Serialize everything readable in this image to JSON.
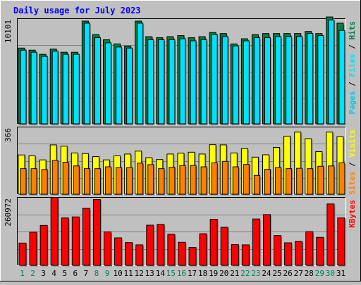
{
  "title": "Daily usage for July 2023",
  "colors": {
    "background": "#c0c0c0",
    "title": "#0000ff",
    "hits": "#008040",
    "files": "#00e0ff",
    "pages": "#00c8e8",
    "visits": "#ffff00",
    "sites": "#ff8000",
    "kbytes": "#ff0000",
    "weekend_label": "#00805c",
    "weekday_label": "#000000"
  },
  "chart_data": [
    {
      "type": "bar",
      "title": "Daily usage for July 2023",
      "categories": [
        "1",
        "2",
        "3",
        "4",
        "5",
        "6",
        "7",
        "8",
        "9",
        "10",
        "11",
        "12",
        "13",
        "14",
        "15",
        "16",
        "17",
        "18",
        "19",
        "20",
        "21",
        "22",
        "23",
        "24",
        "25",
        "26",
        "27",
        "28",
        "29",
        "30",
        "31"
      ],
      "weekend_days": [
        "1",
        "2",
        "8",
        "9",
        "15",
        "16",
        "22",
        "23",
        "29",
        "30"
      ],
      "ylim": [
        0,
        10101
      ],
      "y_tick_label": "10101",
      "right_label": [
        "Pages",
        "Files",
        "Hits"
      ],
      "series": [
        {
          "name": "Hits",
          "values": [
            7300,
            7100,
            6700,
            7200,
            6900,
            6900,
            9900,
            8600,
            8100,
            7700,
            7500,
            9900,
            8400,
            8300,
            8400,
            8500,
            8300,
            8400,
            8800,
            8700,
            7700,
            8200,
            8600,
            8700,
            8700,
            8700,
            8700,
            8900,
            8700,
            10300,
            9700
          ]
        },
        {
          "name": "Files",
          "values": [
            7100,
            6900,
            6500,
            7000,
            6700,
            6700,
            9700,
            8300,
            7800,
            7400,
            7300,
            9700,
            8100,
            8100,
            8100,
            8200,
            8000,
            8100,
            8600,
            8400,
            7500,
            8000,
            8300,
            8300,
            8400,
            8400,
            8400,
            8700,
            8500,
            10000,
            9000
          ]
        }
      ]
    },
    {
      "type": "bar",
      "ylim": [
        0,
        366
      ],
      "y_tick_label": "366",
      "right_label": [
        "Sites",
        "Visits"
      ],
      "series": [
        {
          "name": "Visits",
          "values": [
            215,
            210,
            188,
            270,
            263,
            226,
            223,
            206,
            188,
            210,
            220,
            236,
            200,
            190,
            220,
            225,
            230,
            220,
            271,
            270,
            226,
            250,
            203,
            216,
            256,
            318,
            340,
            304,
            233,
            340,
            315
          ]
        },
        {
          "name": "Sites",
          "values": [
            140,
            140,
            135,
            185,
            175,
            155,
            140,
            140,
            150,
            146,
            146,
            170,
            162,
            140,
            148,
            157,
            158,
            150,
            172,
            180,
            150,
            163,
            103,
            136,
            146,
            140,
            142,
            140,
            153,
            155,
            172
          ]
        }
      ]
    },
    {
      "type": "bar",
      "ylim": [
        0,
        260972
      ],
      "y_tick_label": "260972",
      "right_label": [
        "KBytes"
      ],
      "series": [
        {
          "name": "KBytes",
          "values": [
            86000,
            128000,
            154000,
            262000,
            183000,
            187000,
            220000,
            254000,
            129000,
            106000,
            88000,
            79000,
            155000,
            158000,
            120000,
            89000,
            69000,
            122000,
            178000,
            147000,
            80000,
            79000,
            179000,
            196000,
            115000,
            87000,
            92000,
            130000,
            108000,
            237000,
            183000
          ]
        }
      ]
    }
  ]
}
